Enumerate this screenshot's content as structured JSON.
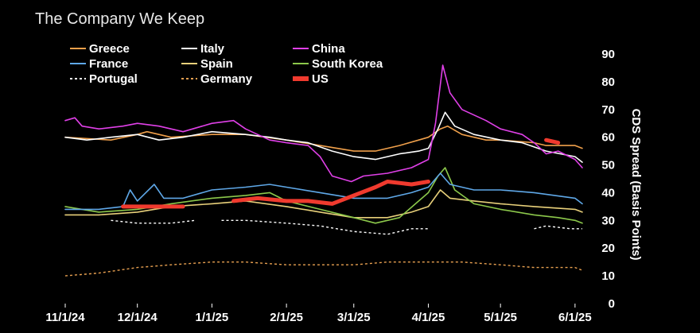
{
  "chart_data": {
    "type": "line",
    "title": "The Company We Keep",
    "xlabel": "",
    "ylabel": "CDS Spread (Basis Points)",
    "ylim": [
      0,
      90
    ],
    "yticks": [
      0,
      10,
      20,
      30,
      40,
      50,
      60,
      70,
      80,
      90
    ],
    "xticks": [
      "11/1/24",
      "12/1/24",
      "1/1/25",
      "2/1/25",
      "3/1/25",
      "4/1/25",
      "5/1/25",
      "6/1/25"
    ],
    "grid": false,
    "legend": "top-left",
    "series": [
      {
        "name": "Greece",
        "color": "#f0a04b",
        "style": "solid",
        "points": [
          [
            "11/1/24",
            60
          ],
          [
            "11/20/24",
            59
          ],
          [
            "12/1/24",
            61
          ],
          [
            "12/5/24",
            62
          ],
          [
            "12/15/24",
            60
          ],
          [
            "1/1/25",
            61
          ],
          [
            "1/15/25",
            61
          ],
          [
            "2/1/25",
            59
          ],
          [
            "2/15/25",
            57
          ],
          [
            "3/1/25",
            55
          ],
          [
            "3/10/25",
            55
          ],
          [
            "3/20/25",
            57
          ],
          [
            "3/28/25",
            59
          ],
          [
            "4/1/25",
            60
          ],
          [
            "4/6/25",
            63
          ],
          [
            "4/9/25",
            64
          ],
          [
            "4/15/25",
            61
          ],
          [
            "4/25/25",
            59
          ],
          [
            "5/1/25",
            59
          ],
          [
            "5/15/25",
            58
          ],
          [
            "5/20/25",
            57
          ],
          [
            "6/1/25",
            57
          ],
          [
            "6/4/25",
            56
          ]
        ]
      },
      {
        "name": "Italy",
        "color": "#ffffff",
        "style": "solid",
        "points": [
          [
            "11/1/24",
            60
          ],
          [
            "11/10/24",
            59
          ],
          [
            "11/20/24",
            60
          ],
          [
            "12/1/24",
            61
          ],
          [
            "12/10/24",
            59
          ],
          [
            "12/20/24",
            60
          ],
          [
            "1/1/25",
            62
          ],
          [
            "1/15/25",
            61
          ],
          [
            "1/25/25",
            60
          ],
          [
            "2/1/25",
            59
          ],
          [
            "2/10/25",
            58
          ],
          [
            "2/20/25",
            55
          ],
          [
            "3/1/25",
            53
          ],
          [
            "3/10/25",
            52
          ],
          [
            "3/20/25",
            54
          ],
          [
            "3/28/25",
            55
          ],
          [
            "4/1/25",
            56
          ],
          [
            "4/5/25",
            63
          ],
          [
            "4/8/25",
            69
          ],
          [
            "4/12/25",
            64
          ],
          [
            "4/20/25",
            61
          ],
          [
            "5/1/25",
            59
          ],
          [
            "5/10/25",
            58
          ],
          [
            "5/20/25",
            55
          ],
          [
            "6/1/25",
            53
          ],
          [
            "6/4/25",
            51
          ]
        ]
      },
      {
        "name": "China",
        "color": "#e040e8",
        "style": "solid",
        "points": [
          [
            "11/1/24",
            66
          ],
          [
            "11/5/24",
            67
          ],
          [
            "11/8/24",
            64
          ],
          [
            "11/15/24",
            63
          ],
          [
            "11/25/24",
            64
          ],
          [
            "12/1/24",
            65
          ],
          [
            "12/10/24",
            64
          ],
          [
            "12/20/24",
            62
          ],
          [
            "1/1/25",
            65
          ],
          [
            "1/10/25",
            66
          ],
          [
            "1/15/25",
            63
          ],
          [
            "1/25/25",
            59
          ],
          [
            "2/1/25",
            58
          ],
          [
            "2/10/25",
            57
          ],
          [
            "2/15/25",
            53
          ],
          [
            "2/20/25",
            46
          ],
          [
            "2/28/25",
            44
          ],
          [
            "3/5/25",
            46
          ],
          [
            "3/15/25",
            47
          ],
          [
            "3/25/25",
            49
          ],
          [
            "4/1/25",
            52
          ],
          [
            "4/4/25",
            65
          ],
          [
            "4/7/25",
            86
          ],
          [
            "4/10/25",
            76
          ],
          [
            "4/15/25",
            70
          ],
          [
            "4/25/25",
            66
          ],
          [
            "5/1/25",
            63
          ],
          [
            "5/10/25",
            61
          ],
          [
            "5/15/25",
            58
          ],
          [
            "5/20/25",
            54
          ],
          [
            "5/25/25",
            55
          ],
          [
            "6/1/25",
            52
          ],
          [
            "6/4/25",
            49
          ]
        ]
      },
      {
        "name": "France",
        "color": "#5fa8e8",
        "style": "solid",
        "points": [
          [
            "11/1/24",
            34
          ],
          [
            "11/15/24",
            34
          ],
          [
            "11/25/24",
            35
          ],
          [
            "11/28/24",
            41
          ],
          [
            "12/1/24",
            37
          ],
          [
            "12/8/24",
            43
          ],
          [
            "12/12/24",
            38
          ],
          [
            "12/20/24",
            38
          ],
          [
            "1/1/25",
            41
          ],
          [
            "1/15/25",
            42
          ],
          [
            "1/25/25",
            43
          ],
          [
            "2/1/25",
            42
          ],
          [
            "2/15/25",
            40
          ],
          [
            "3/1/25",
            38
          ],
          [
            "3/15/25",
            38
          ],
          [
            "3/25/25",
            40
          ],
          [
            "4/1/25",
            42
          ],
          [
            "4/6/25",
            47
          ],
          [
            "4/10/25",
            43
          ],
          [
            "4/20/25",
            41
          ],
          [
            "5/1/25",
            41
          ],
          [
            "5/15/25",
            40
          ],
          [
            "6/1/25",
            38
          ],
          [
            "6/4/25",
            36
          ]
        ]
      },
      {
        "name": "Spain",
        "color": "#e8d07a",
        "style": "solid",
        "points": [
          [
            "11/1/24",
            32
          ],
          [
            "11/15/24",
            32
          ],
          [
            "12/1/24",
            33
          ],
          [
            "12/15/24",
            35
          ],
          [
            "1/1/25",
            36
          ],
          [
            "1/15/25",
            37
          ],
          [
            "2/1/25",
            35
          ],
          [
            "2/15/25",
            33
          ],
          [
            "3/1/25",
            31
          ],
          [
            "3/15/25",
            31
          ],
          [
            "3/25/25",
            33
          ],
          [
            "4/1/25",
            35
          ],
          [
            "4/6/25",
            41
          ],
          [
            "4/10/25",
            38
          ],
          [
            "4/20/25",
            37
          ],
          [
            "5/1/25",
            36
          ],
          [
            "5/15/25",
            35
          ],
          [
            "6/1/25",
            34
          ],
          [
            "6/4/25",
            33
          ]
        ]
      },
      {
        "name": "South Korea",
        "color": "#8cc84b",
        "style": "solid",
        "points": [
          [
            "11/1/24",
            35
          ],
          [
            "11/15/24",
            33
          ],
          [
            "12/1/24",
            34
          ],
          [
            "12/15/24",
            36
          ],
          [
            "1/1/25",
            38
          ],
          [
            "1/15/25",
            39
          ],
          [
            "1/25/25",
            40
          ],
          [
            "2/1/25",
            37
          ],
          [
            "2/15/25",
            34
          ],
          [
            "3/1/25",
            31
          ],
          [
            "3/10/25",
            29
          ],
          [
            "3/20/25",
            31
          ],
          [
            "4/1/25",
            40
          ],
          [
            "4/5/25",
            46
          ],
          [
            "4/8/25",
            49
          ],
          [
            "4/12/25",
            41
          ],
          [
            "4/20/25",
            36
          ],
          [
            "5/1/25",
            34
          ],
          [
            "5/15/25",
            32
          ],
          [
            "5/25/25",
            31
          ],
          [
            "6/1/25",
            30
          ],
          [
            "6/4/25",
            29
          ]
        ]
      },
      {
        "name": "Portugal",
        "color": "#ffffff",
        "style": "dashed",
        "points": [
          [
            "11/20/24",
            30
          ],
          [
            "12/1/24",
            29
          ],
          [
            "12/15/24",
            29
          ],
          [
            "12/25/24",
            30
          ],
          null,
          [
            "1/5/25",
            30
          ],
          [
            "1/15/25",
            30
          ],
          [
            "2/1/25",
            29
          ],
          [
            "2/15/25",
            28
          ],
          [
            "3/1/25",
            26
          ],
          [
            "3/15/25",
            25
          ],
          [
            "3/25/25",
            27
          ],
          [
            "4/1/25",
            27
          ],
          null,
          [
            "5/15/25",
            27
          ],
          [
            "5/20/25",
            28
          ],
          [
            "5/30/25",
            27
          ],
          [
            "6/4/25",
            27
          ]
        ]
      },
      {
        "name": "Germany",
        "color": "#e8a050",
        "style": "dashed",
        "points": [
          [
            "11/1/24",
            10
          ],
          [
            "11/15/24",
            11
          ],
          [
            "12/1/24",
            13
          ],
          [
            "12/15/24",
            14
          ],
          [
            "1/1/25",
            15
          ],
          [
            "1/15/25",
            15
          ],
          [
            "2/1/25",
            14
          ],
          [
            "2/15/25",
            14
          ],
          [
            "3/1/25",
            14
          ],
          [
            "3/15/25",
            15
          ],
          [
            "4/1/25",
            15
          ],
          [
            "4/15/25",
            15
          ],
          [
            "5/1/25",
            14
          ],
          [
            "5/15/25",
            13
          ],
          [
            "6/1/25",
            13
          ],
          [
            "6/4/25",
            12
          ]
        ]
      },
      {
        "name": "US",
        "color": "#f03a2e",
        "style": "thick",
        "points": [
          [
            "11/25/24",
            35
          ],
          [
            "12/1/24",
            35
          ],
          [
            "12/15/24",
            35
          ],
          [
            "12/20/24",
            35
          ],
          null,
          [
            "1/10/25",
            37
          ],
          [
            "1/20/25",
            38
          ],
          [
            "2/1/25",
            37
          ],
          [
            "2/10/25",
            37
          ],
          [
            "2/20/25",
            36
          ],
          [
            "3/1/25",
            39
          ],
          [
            "3/10/25",
            42
          ],
          [
            "3/15/25",
            44
          ],
          [
            "3/25/25",
            43
          ],
          [
            "4/1/25",
            44
          ],
          null,
          [
            "5/20/25",
            59
          ],
          [
            "5/25/25",
            58
          ],
          null,
          [
            "6/1/25",
            55
          ]
        ]
      }
    ]
  }
}
